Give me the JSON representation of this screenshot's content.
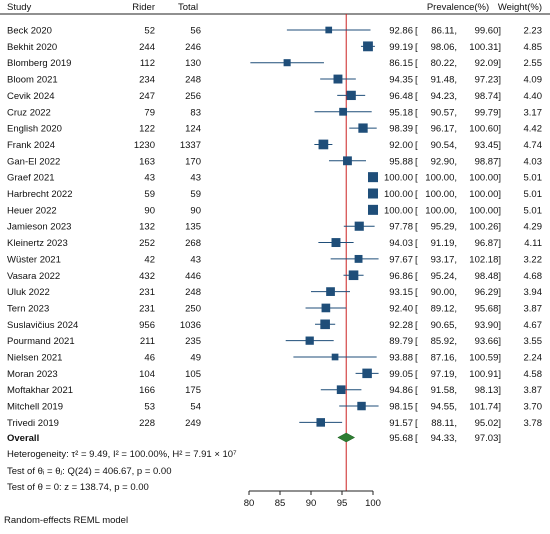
{
  "chart_data": {
    "type": "forest",
    "headers": {
      "study": "Study",
      "rider": "Rider",
      "total": "Total",
      "prevalence": "Prevalence(%)",
      "weight": "Weight(%)"
    },
    "xlim": [
      80,
      100
    ],
    "xticks": [
      80,
      85,
      90,
      95,
      100
    ],
    "overall_line": 95.68,
    "colors": {
      "marker": "#1f4e79",
      "ci_line": "#1f4e79",
      "overall_diamond": "#2e7d32",
      "reference_line": "#cc2222"
    },
    "studies": [
      {
        "study": "Beck 2020",
        "rider": "52",
        "total": "56",
        "est": 92.86,
        "lo": 86.11,
        "hi": 99.6,
        "est_text": "92.86",
        "lo_text": "86.11,",
        "hi_text": "99.60]",
        "weight": "2.23"
      },
      {
        "study": "Bekhit  2020",
        "rider": "244",
        "total": "246",
        "est": 99.19,
        "lo": 98.06,
        "hi": 100.31,
        "est_text": "99.19",
        "lo_text": "98.06,",
        "hi_text": "100.31]",
        "weight": "4.85"
      },
      {
        "study": "Blomberg 2019",
        "rider": "112",
        "total": "130",
        "est": 86.15,
        "lo": 80.22,
        "hi": 92.09,
        "est_text": "86.15",
        "lo_text": "80.22,",
        "hi_text": "92.09]",
        "weight": "2.55"
      },
      {
        "study": "Bloom 2021",
        "rider": "234",
        "total": "248",
        "est": 94.35,
        "lo": 91.48,
        "hi": 97.23,
        "est_text": "94.35",
        "lo_text": "91.48,",
        "hi_text": "97.23]",
        "weight": "4.09"
      },
      {
        "study": "Cevik 2024",
        "rider": "247",
        "total": "256",
        "est": 96.48,
        "lo": 94.23,
        "hi": 98.74,
        "est_text": "96.48",
        "lo_text": "94.23,",
        "hi_text": "98.74]",
        "weight": "4.40"
      },
      {
        "study": "Cruz 2022",
        "rider": "79",
        "total": "83",
        "est": 95.18,
        "lo": 90.57,
        "hi": 99.79,
        "est_text": "95.18",
        "lo_text": "90.57,",
        "hi_text": "99.79]",
        "weight": "3.17"
      },
      {
        "study": "English  2020",
        "rider": "122",
        "total": "124",
        "est": 98.39,
        "lo": 96.17,
        "hi": 100.6,
        "est_text": "98.39",
        "lo_text": "96.17,",
        "hi_text": "100.60]",
        "weight": "4.42"
      },
      {
        "study": "Frank 2024",
        "rider": "1230",
        "total": "1337",
        "est": 92.0,
        "lo": 90.54,
        "hi": 93.45,
        "est_text": "92.00",
        "lo_text": "90.54,",
        "hi_text": "93.45]",
        "weight": "4.74"
      },
      {
        "study": "Gan-El 2022",
        "rider": "163",
        "total": "170",
        "est": 95.88,
        "lo": 92.9,
        "hi": 98.87,
        "est_text": "95.88",
        "lo_text": "92.90,",
        "hi_text": "98.87]",
        "weight": "4.03"
      },
      {
        "study": "Graef 2021",
        "rider": "43",
        "total": "43",
        "est": 100.0,
        "lo": 100.0,
        "hi": 100.0,
        "est_text": "100.00",
        "lo_text": "100.00,",
        "hi_text": "100.00]",
        "weight": "5.01"
      },
      {
        "study": "Harbrecht 2022",
        "rider": "59",
        "total": "59",
        "est": 100.0,
        "lo": 100.0,
        "hi": 100.0,
        "est_text": "100.00",
        "lo_text": "100.00,",
        "hi_text": "100.00]",
        "weight": "5.01"
      },
      {
        "study": "Heuer 2022",
        "rider": "90",
        "total": "90",
        "est": 100.0,
        "lo": 100.0,
        "hi": 100.0,
        "est_text": "100.00",
        "lo_text": "100.00,",
        "hi_text": "100.00]",
        "weight": "5.01"
      },
      {
        "study": "Jamieson 2023",
        "rider": "132",
        "total": "135",
        "est": 97.78,
        "lo": 95.29,
        "hi": 100.26,
        "est_text": "97.78",
        "lo_text": "95.29,",
        "hi_text": "100.26]",
        "weight": "4.29"
      },
      {
        "study": "Kleinertz 2023",
        "rider": "252",
        "total": "268",
        "est": 94.03,
        "lo": 91.19,
        "hi": 96.87,
        "est_text": "94.03",
        "lo_text": "91.19,",
        "hi_text": "96.87]",
        "weight": "4.11"
      },
      {
        "study": "Wüster 2021",
        "rider": "42",
        "total": "43",
        "est": 97.67,
        "lo": 93.17,
        "hi": 102.18,
        "est_text": "97.67",
        "lo_text": "93.17,",
        "hi_text": "102.18]",
        "weight": "3.22"
      },
      {
        "study": "Vasara 2022",
        "rider": "432",
        "total": "446",
        "est": 96.86,
        "lo": 95.24,
        "hi": 98.48,
        "est_text": "96.86",
        "lo_text": "95.24,",
        "hi_text": "98.48]",
        "weight": "4.68"
      },
      {
        "study": "Uluk 2022",
        "rider": "231",
        "total": "248",
        "est": 93.15,
        "lo": 90.0,
        "hi": 96.29,
        "est_text": "93.15",
        "lo_text": "90.00,",
        "hi_text": "96.29]",
        "weight": "3.94"
      },
      {
        "study": "Tern 2023",
        "rider": "231",
        "total": "250",
        "est": 92.4,
        "lo": 89.12,
        "hi": 95.68,
        "est_text": "92.40",
        "lo_text": "89.12,",
        "hi_text": "95.68]",
        "weight": "3.87"
      },
      {
        "study": "Suslavičius 2024",
        "rider": "956",
        "total": "1036",
        "est": 92.28,
        "lo": 90.65,
        "hi": 93.9,
        "est_text": "92.28",
        "lo_text": "90.65,",
        "hi_text": "93.90]",
        "weight": "4.67"
      },
      {
        "study": "Pourmand 2021",
        "rider": "211",
        "total": "235",
        "est": 89.79,
        "lo": 85.92,
        "hi": 93.66,
        "est_text": "89.79",
        "lo_text": "85.92,",
        "hi_text": "93.66]",
        "weight": "3.55"
      },
      {
        "study": "Nielsen 2021",
        "rider": "46",
        "total": "49",
        "est": 93.88,
        "lo": 87.16,
        "hi": 100.59,
        "est_text": "93.88",
        "lo_text": "87.16,",
        "hi_text": "100.59]",
        "weight": "2.24"
      },
      {
        "study": "Moran 2023",
        "rider": "104",
        "total": "105",
        "est": 99.05,
        "lo": 97.19,
        "hi": 100.91,
        "est_text": "99.05",
        "lo_text": "97.19,",
        "hi_text": "100.91]",
        "weight": "4.58"
      },
      {
        "study": "Moftakhar 2021",
        "rider": "166",
        "total": "175",
        "est": 94.86,
        "lo": 91.58,
        "hi": 98.13,
        "est_text": "94.86",
        "lo_text": "91.58,",
        "hi_text": "98.13]",
        "weight": "3.87"
      },
      {
        "study": "Mitchell 2019",
        "rider": "53",
        "total": "54",
        "est": 98.15,
        "lo": 94.55,
        "hi": 101.74,
        "est_text": "98.15",
        "lo_text": "94.55,",
        "hi_text": "101.74]",
        "weight": "3.70"
      },
      {
        "study": "Trivedi 2019",
        "rider": "228",
        "total": "249",
        "est": 91.57,
        "lo": 88.11,
        "hi": 95.02,
        "est_text": "91.57",
        "lo_text": "88.11,",
        "hi_text": "95.02]",
        "weight": "3.78"
      }
    ],
    "overall": {
      "label": "Overall",
      "est": 95.68,
      "lo": 94.33,
      "hi": 97.03,
      "est_text": "95.68",
      "lo_text": "94.33,",
      "hi_text": "97.03]"
    },
    "stats": {
      "heterogeneity": "Heterogeneity: τ² = 9.49, I² = 100.00%, H² = 7.91 × 10⁷",
      "test_theta_i": "Test of θᵢ = θⱼ: Q(24) = 406.67, p = 0.00",
      "test_theta_0": "Test of θ = 0: z = 138.74, p = 0.00"
    },
    "footer": "Random-effects REML model"
  }
}
